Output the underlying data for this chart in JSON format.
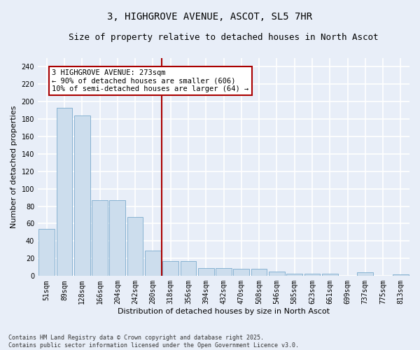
{
  "title_line1": "3, HIGHGROVE AVENUE, ASCOT, SL5 7HR",
  "title_line2": "Size of property relative to detached houses in North Ascot",
  "xlabel": "Distribution of detached houses by size in North Ascot",
  "ylabel": "Number of detached properties",
  "categories": [
    "51sqm",
    "89sqm",
    "128sqm",
    "166sqm",
    "204sqm",
    "242sqm",
    "280sqm",
    "318sqm",
    "356sqm",
    "394sqm",
    "432sqm",
    "470sqm",
    "508sqm",
    "546sqm",
    "585sqm",
    "623sqm",
    "661sqm",
    "699sqm",
    "737sqm",
    "775sqm",
    "813sqm"
  ],
  "values": [
    54,
    193,
    184,
    87,
    87,
    68,
    29,
    17,
    17,
    9,
    9,
    8,
    8,
    5,
    3,
    3,
    3,
    0,
    4,
    0,
    2
  ],
  "bar_color": "#ccdded",
  "bar_edge_color": "#7aaacc",
  "vline_color": "#aa0000",
  "annotation_text": "3 HIGHGROVE AVENUE: 273sqm\n← 90% of detached houses are smaller (606)\n10% of semi-detached houses are larger (64) →",
  "annotation_box_color": "#ffffff",
  "annotation_box_edge": "#aa0000",
  "background_color": "#e8eef8",
  "grid_color": "#ffffff",
  "ylim": [
    0,
    250
  ],
  "yticks": [
    0,
    20,
    40,
    60,
    80,
    100,
    120,
    140,
    160,
    180,
    200,
    220,
    240
  ],
  "footnote": "Contains HM Land Registry data © Crown copyright and database right 2025.\nContains public sector information licensed under the Open Government Licence v3.0.",
  "title_fontsize": 10,
  "subtitle_fontsize": 9,
  "axis_label_fontsize": 8,
  "tick_fontsize": 7,
  "annotation_fontsize": 7.5,
  "footnote_fontsize": 6
}
